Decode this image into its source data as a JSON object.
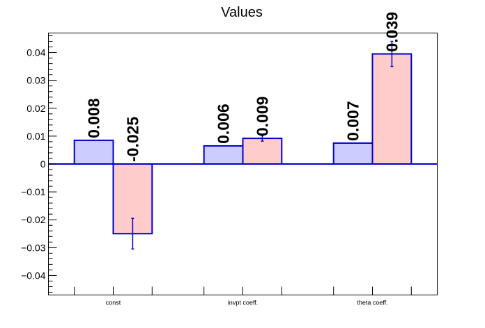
{
  "chart_data": {
    "type": "bar",
    "title": "Values",
    "xlabel": "",
    "ylabel": "",
    "categories": [
      "const",
      "invpt coeff.",
      "theta coeff."
    ],
    "ylim": [
      -0.047,
      0.047
    ],
    "yticks": [
      -0.04,
      -0.03,
      -0.02,
      -0.01,
      0,
      0.01,
      0.02,
      0.03,
      0.04
    ],
    "ytick_labels": [
      "−0.04",
      "−0.03",
      "−0.02",
      "−0.01",
      "0",
      "0.01",
      "0.02",
      "0.03",
      "0.04"
    ],
    "series": [
      {
        "color": "#ccccff",
        "values": [
          0.0085,
          0.0065,
          0.0075
        ],
        "errors": [
          0.0,
          0.0,
          0.0
        ],
        "labels": [
          "0.008",
          "0.006",
          "0.007"
        ]
      },
      {
        "color": "#ffcccc",
        "values": [
          -0.025,
          0.0092,
          0.0395
        ],
        "errors": [
          0.0055,
          0.001,
          0.0045
        ],
        "labels": [
          "-0.025",
          "0.009",
          "0.039"
        ]
      }
    ],
    "bar_edge_color": "#0000cc",
    "zero_line_color": "#0000cc",
    "grid": false,
    "legend": "none"
  }
}
